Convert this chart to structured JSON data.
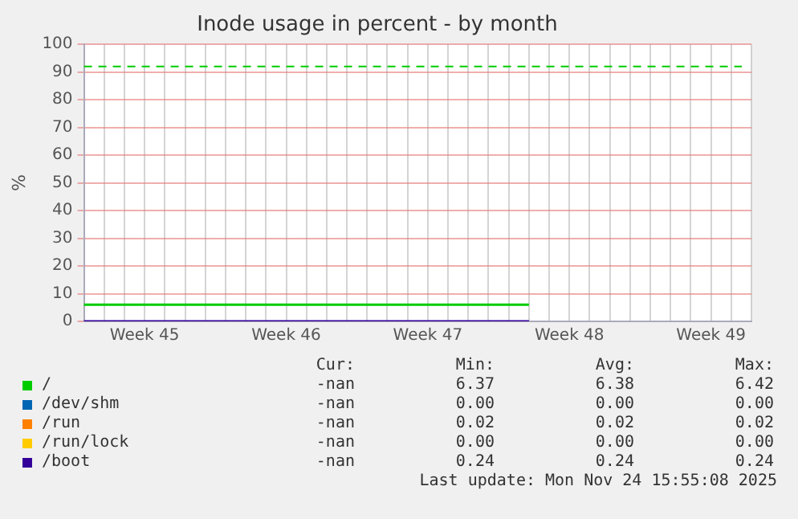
{
  "chart_data": {
    "type": "line",
    "title": "Inode usage in percent - by month",
    "ylabel": "%",
    "categories": [
      null,
      null,
      null,
      "Week 45",
      null,
      null,
      null,
      null,
      null,
      null,
      "Week 46",
      null,
      null,
      null,
      null,
      null,
      null,
      "Week 47",
      null,
      null,
      null,
      null,
      null,
      null,
      "Week 48",
      null,
      null,
      null,
      null,
      null,
      null,
      "Week 49",
      null,
      null
    ],
    "series": [
      {
        "name": "/",
        "color": "#00cc00",
        "values": [
          6,
          6,
          6,
          6,
          6,
          6,
          6,
          6,
          6,
          6,
          6,
          6,
          6,
          6,
          6,
          6,
          6,
          6,
          6,
          6,
          6,
          6,
          6,
          null,
          null,
          null,
          null,
          null,
          null,
          null,
          null,
          null,
          null,
          null
        ]
      },
      {
        "name": "/dev/shm",
        "color": "#0066b3",
        "values": [
          null,
          null,
          null,
          null,
          null,
          null,
          null,
          null,
          null,
          null,
          null,
          null,
          null,
          null,
          null,
          null,
          null,
          null,
          null,
          null,
          null,
          null,
          null,
          null,
          null,
          null,
          null,
          null,
          null,
          null,
          null,
          null,
          null,
          null
        ]
      },
      {
        "name": "/run",
        "color": "#ff8000",
        "values": [
          null,
          null,
          null,
          null,
          null,
          null,
          null,
          null,
          null,
          null,
          null,
          null,
          null,
          null,
          null,
          null,
          null,
          null,
          null,
          null,
          null,
          null,
          null,
          null,
          null,
          null,
          null,
          null,
          null,
          null,
          null,
          null,
          null,
          null
        ]
      },
      {
        "name": "/run/lock",
        "color": "#ffcc00",
        "values": [
          null,
          null,
          null,
          null,
          null,
          null,
          null,
          null,
          null,
          null,
          null,
          null,
          null,
          null,
          null,
          null,
          null,
          null,
          null,
          null,
          null,
          null,
          null,
          null,
          null,
          null,
          null,
          null,
          null,
          null,
          null,
          null,
          null,
          null
        ]
      },
      {
        "name": "/boot",
        "color": "#330099",
        "values": [
          0,
          0,
          0,
          0,
          0,
          0,
          0,
          0,
          0,
          0,
          0,
          0,
          0,
          0,
          0,
          0,
          0,
          0,
          0,
          0,
          0,
          0,
          0,
          null,
          null,
          null,
          null,
          null,
          null,
          null,
          null,
          null,
          null,
          null
        ]
      }
    ],
    "ylim": [
      0,
      100
    ],
    "yticks": [
      0,
      10,
      20,
      30,
      40,
      50,
      60,
      70,
      80,
      90,
      100
    ],
    "ref_lines": [
      {
        "axis": "y",
        "value": 92,
        "color": "#00cc00",
        "line_style": "dashed"
      }
    ],
    "grid": true,
    "legend": "bottom",
    "marker": "none",
    "line_style": "solid",
    "annotations": [
      "Cur:",
      "Min:",
      "Avg:",
      "Max:",
      "-nan",
      "6.37",
      "6.38",
      "6.42",
      "-nan",
      "0.00",
      "0.00",
      "0.00",
      "-nan",
      "0.02",
      "0.02",
      "0.02",
      "-nan",
      "0.00",
      "0.00",
      "0.00",
      "-nan",
      "0.24",
      "0.24",
      "0.24",
      "Last update: Mon Nov 24 15:55:08 2025"
    ]
  }
}
